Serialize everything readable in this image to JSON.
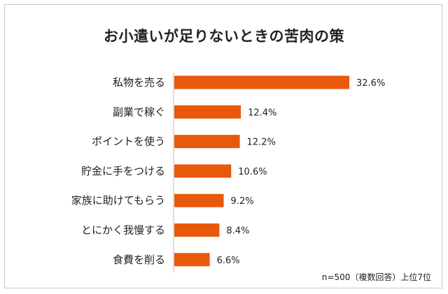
{
  "chart_data": {
    "type": "bar",
    "orientation": "horizontal",
    "title": "お小遣いが足りないときの苦肉の策",
    "categories": [
      "私物を売る",
      "副業で稼ぐ",
      "ポイントを使う",
      "貯金に手をつける",
      "家族に助けてもらう",
      "とにかく我慢する",
      "食費を削る"
    ],
    "values": [
      32.6,
      12.4,
      12.2,
      10.6,
      9.2,
      8.4,
      6.6
    ],
    "value_labels": [
      "32.6%",
      "12.4%",
      "12.2%",
      "10.6%",
      "9.2%",
      "8.4%",
      "6.6%"
    ],
    "unit": "%",
    "xlim": [
      0,
      32.6
    ],
    "grid": false,
    "bar_color": "#e8590c",
    "note": "n=500（複数回答）上位7位"
  }
}
